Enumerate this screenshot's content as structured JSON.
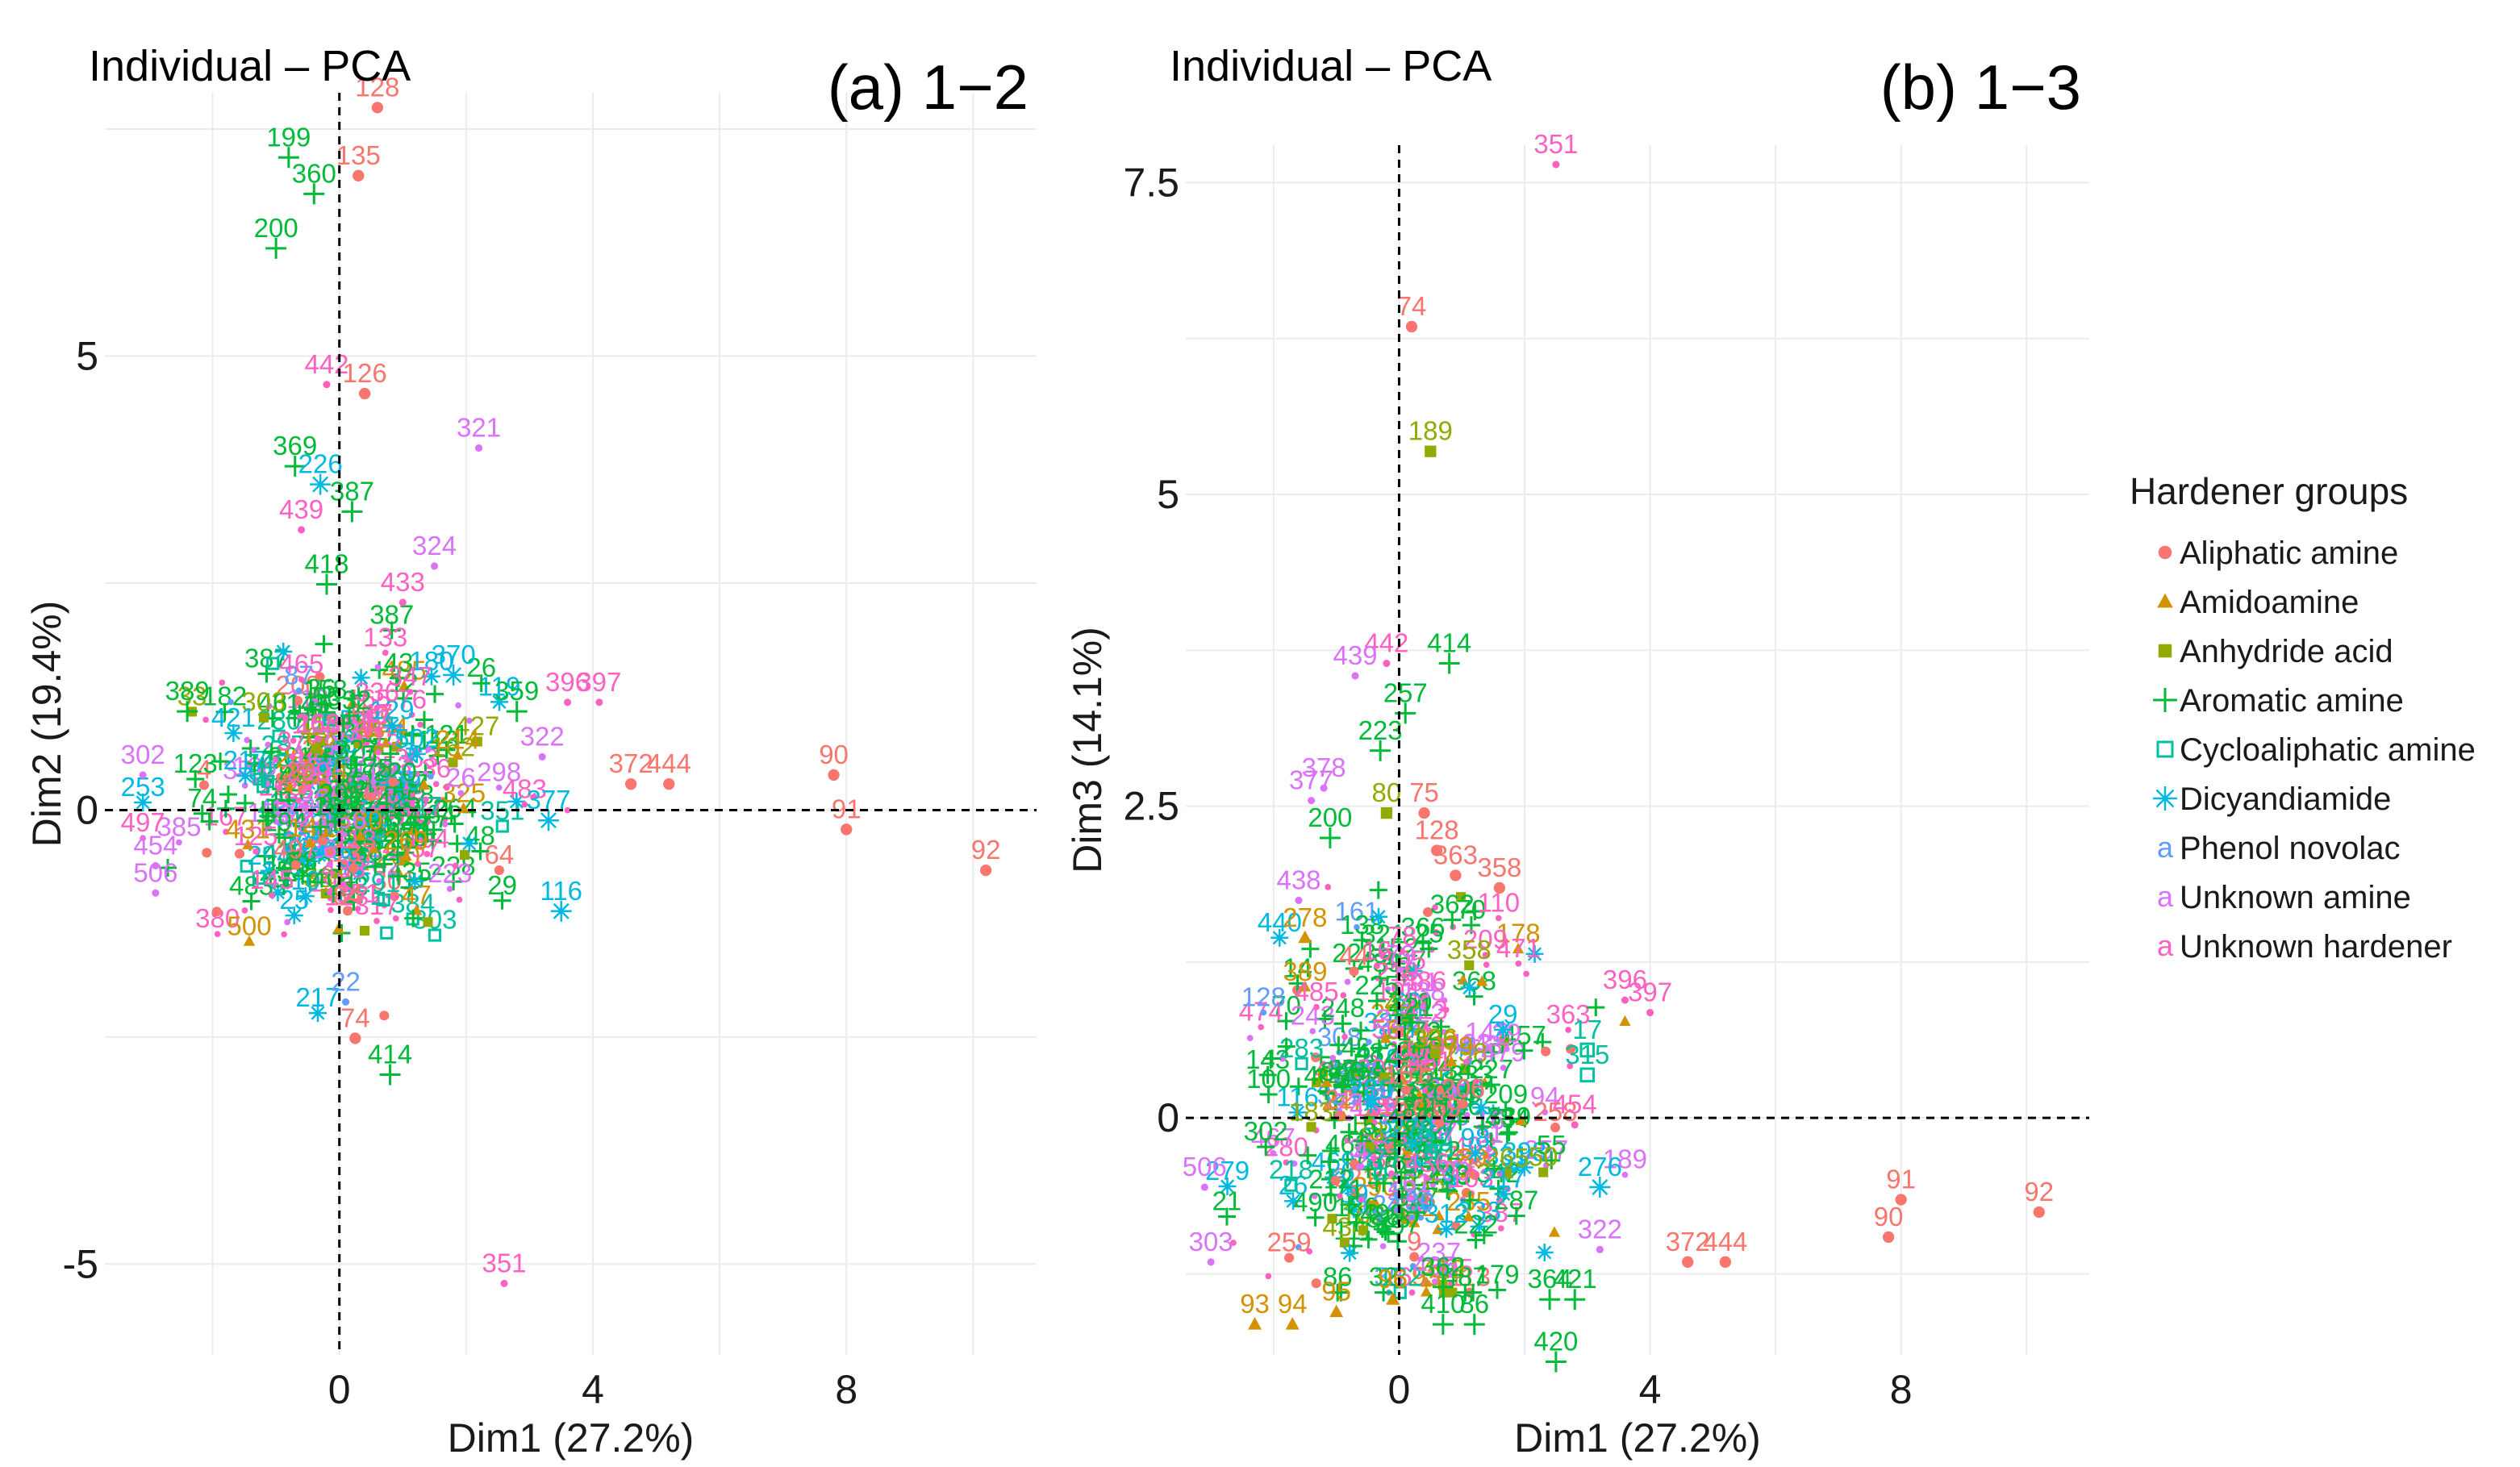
{
  "legend": {
    "title": "Hardener groups",
    "groups": [
      {
        "key": "aliphatic",
        "label": "Aliphatic amine",
        "color": "#F8766D",
        "symbol": "circle"
      },
      {
        "key": "amidoamine",
        "label": "Amidoamine",
        "color": "#D39200",
        "symbol": "triangle"
      },
      {
        "key": "anhydride",
        "label": "Anhydride acid",
        "color": "#93AA00",
        "symbol": "square"
      },
      {
        "key": "aromatic",
        "label": "Aromatic amine",
        "color": "#00BA38",
        "symbol": "plus"
      },
      {
        "key": "cycloaliphatic",
        "label": "Cycloaliphatic amine",
        "color": "#00C19F",
        "symbol": "boxed"
      },
      {
        "key": "dicyandiamide",
        "label": "Dicyandiamide",
        "color": "#00B9E3",
        "symbol": "asterisk"
      },
      {
        "key": "phenol",
        "label": "Phenol novolac",
        "color": "#619CFF",
        "symbol": "letter"
      },
      {
        "key": "unknown_amine",
        "label": "Unknown amine",
        "color": "#DB72FB",
        "symbol": "letter"
      },
      {
        "key": "unknown_hardener",
        "label": "Unknown hardener",
        "color": "#FF61C3",
        "symbol": "letter"
      }
    ]
  },
  "chart_data": [
    {
      "type": "scatter",
      "title": "Individual – PCA",
      "panel_label": "(a) 1−2",
      "xlabel": "Dim1 (27.2%)",
      "ylabel": "Dim2 (19.4%)",
      "xlim": [
        -3.7,
        11
      ],
      "ylim": [
        -6.0,
        7.9
      ],
      "xticks": [
        0,
        4,
        8
      ],
      "yticks": [
        -5,
        0,
        5
      ],
      "grid": true,
      "labeled_points": [
        {
          "id": "128",
          "x": 0.6,
          "y": 7.95,
          "group": "aliphatic"
        },
        {
          "id": "135",
          "x": 0.3,
          "y": 7.2,
          "group": "aliphatic"
        },
        {
          "id": "199",
          "x": -0.8,
          "y": 7.4,
          "group": "aromatic"
        },
        {
          "id": "360",
          "x": -0.4,
          "y": 7.0,
          "group": "aromatic"
        },
        {
          "id": "200",
          "x": -1.0,
          "y": 6.4,
          "group": "aromatic"
        },
        {
          "id": "442",
          "x": -0.2,
          "y": 4.9,
          "group": "unknown_hardener"
        },
        {
          "id": "126",
          "x": 0.4,
          "y": 4.8,
          "group": "aliphatic"
        },
        {
          "id": "369",
          "x": -0.7,
          "y": 4.0,
          "group": "aromatic"
        },
        {
          "id": "321",
          "x": 2.2,
          "y": 4.2,
          "group": "unknown_amine"
        },
        {
          "id": "226",
          "x": -0.3,
          "y": 3.8,
          "group": "dicyandiamide"
        },
        {
          "id": "387",
          "x": 0.2,
          "y": 3.5,
          "group": "aromatic"
        },
        {
          "id": "439",
          "x": -0.6,
          "y": 3.3,
          "group": "unknown_hardener"
        },
        {
          "id": "324",
          "x": 1.5,
          "y": 2.9,
          "group": "unknown_amine"
        },
        {
          "id": "433",
          "x": 1.0,
          "y": 2.5,
          "group": "unknown_hardener"
        },
        {
          "id": "418",
          "x": -0.2,
          "y": 2.7,
          "group": "aromatic"
        },
        {
          "id": "370",
          "x": 1.8,
          "y": 1.7,
          "group": "dicyandiamide"
        },
        {
          "id": "389",
          "x": -2.4,
          "y": 1.3,
          "group": "aromatic"
        },
        {
          "id": "396",
          "x": 3.6,
          "y": 1.4,
          "group": "unknown_hardener"
        },
        {
          "id": "397",
          "x": 4.1,
          "y": 1.4,
          "group": "unknown_hardener"
        },
        {
          "id": "359",
          "x": 2.8,
          "y": 1.3,
          "group": "aromatic"
        },
        {
          "id": "322",
          "x": 3.2,
          "y": 0.8,
          "group": "unknown_amine"
        },
        {
          "id": "372",
          "x": 4.6,
          "y": 0.5,
          "group": "aliphatic"
        },
        {
          "id": "444",
          "x": 5.2,
          "y": 0.5,
          "group": "aliphatic"
        },
        {
          "id": "90",
          "x": 7.8,
          "y": 0.6,
          "group": "aliphatic"
        },
        {
          "id": "91",
          "x": 8.0,
          "y": 0.0,
          "group": "aliphatic"
        },
        {
          "id": "92",
          "x": 10.2,
          "y": -0.45,
          "group": "aliphatic"
        },
        {
          "id": "377",
          "x": 3.3,
          "y": 0.1,
          "group": "dicyandiamide"
        },
        {
          "id": "116",
          "x": 3.5,
          "y": -0.9,
          "group": "dicyandiamide"
        },
        {
          "id": "22",
          "x": 0.1,
          "y": -1.9,
          "group": "phenol"
        },
        {
          "id": "74",
          "x": 0.25,
          "y": -2.3,
          "group": "aliphatic"
        },
        {
          "id": "414",
          "x": 0.8,
          "y": -2.7,
          "group": "aromatic"
        },
        {
          "id": "351",
          "x": 2.6,
          "y": -5.0,
          "group": "unknown_hardener"
        },
        {
          "id": "302",
          "x": -3.1,
          "y": 0.6,
          "group": "unknown_amine"
        },
        {
          "id": "454",
          "x": -2.9,
          "y": -0.4,
          "group": "unknown_amine"
        },
        {
          "id": "506",
          "x": -2.9,
          "y": -0.7,
          "group": "unknown_amine"
        }
      ]
    },
    {
      "type": "scatter",
      "title": "Individual – PCA",
      "panel_label": "(b) 1−3",
      "xlabel": "Dim1 (27.2%)",
      "ylabel": "Dim3 (14.1%)",
      "xlim": [
        -3.4,
        11
      ],
      "ylim": [
        -1.9,
        7.8
      ],
      "xticks": [
        0,
        4,
        8
      ],
      "yticks": [
        0,
        2.5,
        5,
        7.5
      ],
      "grid": true,
      "labeled_points": [
        {
          "id": "351",
          "x": 2.5,
          "y": 7.8,
          "group": "unknown_hardener"
        },
        {
          "id": "74",
          "x": 0.2,
          "y": 6.5,
          "group": "aliphatic"
        },
        {
          "id": "189",
          "x": 0.5,
          "y": 5.5,
          "group": "anhydride"
        },
        {
          "id": "414",
          "x": 0.8,
          "y": 3.8,
          "group": "aromatic"
        },
        {
          "id": "442",
          "x": -0.2,
          "y": 3.8,
          "group": "unknown_hardener"
        },
        {
          "id": "439",
          "x": -0.7,
          "y": 3.7,
          "group": "unknown_amine"
        },
        {
          "id": "257",
          "x": 0.1,
          "y": 3.4,
          "group": "aromatic"
        },
        {
          "id": "223",
          "x": -0.3,
          "y": 3.1,
          "group": "aromatic"
        },
        {
          "id": "378",
          "x": -1.2,
          "y": 2.8,
          "group": "unknown_amine"
        },
        {
          "id": "377",
          "x": -1.4,
          "y": 2.7,
          "group": "unknown_amine"
        },
        {
          "id": "80",
          "x": -0.2,
          "y": 2.6,
          "group": "anhydride"
        },
        {
          "id": "75",
          "x": 0.4,
          "y": 2.6,
          "group": "aliphatic"
        },
        {
          "id": "200",
          "x": -1.1,
          "y": 2.4,
          "group": "aromatic"
        },
        {
          "id": "128",
          "x": 0.6,
          "y": 2.3,
          "group": "aliphatic"
        },
        {
          "id": "363",
          "x": 0.9,
          "y": 2.1,
          "group": "aliphatic"
        },
        {
          "id": "358",
          "x": 1.6,
          "y": 2.0,
          "group": "aliphatic"
        },
        {
          "id": "438",
          "x": -1.6,
          "y": 1.9,
          "group": "unknown_amine"
        },
        {
          "id": "278",
          "x": -1.5,
          "y": 1.6,
          "group": "amidoamine"
        },
        {
          "id": "396",
          "x": 3.6,
          "y": 1.1,
          "group": "unknown_hardener"
        },
        {
          "id": "397",
          "x": 4.0,
          "y": 1.0,
          "group": "unknown_hardener"
        },
        {
          "id": "17",
          "x": 3.0,
          "y": 0.7,
          "group": "cycloaliphatic"
        },
        {
          "id": "315",
          "x": 3.0,
          "y": 0.5,
          "group": "cycloaliphatic"
        },
        {
          "id": "454",
          "x": 2.8,
          "y": 0.1,
          "group": "unknown_hardener"
        },
        {
          "id": "276",
          "x": 3.2,
          "y": -0.4,
          "group": "dicyandiamide"
        },
        {
          "id": "91",
          "x": 8.0,
          "y": -0.5,
          "group": "aliphatic"
        },
        {
          "id": "92",
          "x": 10.2,
          "y": -0.6,
          "group": "aliphatic"
        },
        {
          "id": "90",
          "x": 7.8,
          "y": -0.8,
          "group": "aliphatic"
        },
        {
          "id": "372",
          "x": 4.6,
          "y": -1.0,
          "group": "aliphatic"
        },
        {
          "id": "444",
          "x": 5.2,
          "y": -1.0,
          "group": "aliphatic"
        },
        {
          "id": "322",
          "x": 3.2,
          "y": -0.9,
          "group": "unknown_amine"
        },
        {
          "id": "421",
          "x": 2.8,
          "y": -1.3,
          "group": "aromatic"
        },
        {
          "id": "364",
          "x": 2.4,
          "y": -1.3,
          "group": "aromatic"
        },
        {
          "id": "362",
          "x": 0.7,
          "y": -1.2,
          "group": "aromatic"
        },
        {
          "id": "93",
          "x": -2.3,
          "y": -1.5,
          "group": "amidoamine"
        },
        {
          "id": "94",
          "x": -1.7,
          "y": -1.5,
          "group": "amidoamine"
        },
        {
          "id": "95",
          "x": -1.0,
          "y": -1.4,
          "group": "amidoamine"
        },
        {
          "id": "96",
          "x": -0.1,
          "y": -1.3,
          "group": "amidoamine"
        },
        {
          "id": "410",
          "x": 0.7,
          "y": -1.5,
          "group": "aromatic"
        },
        {
          "id": "86",
          "x": 1.2,
          "y": -1.5,
          "group": "aromatic"
        },
        {
          "id": "420",
          "x": 2.5,
          "y": -1.8,
          "group": "aromatic"
        },
        {
          "id": "506",
          "x": -3.1,
          "y": -0.4,
          "group": "unknown_amine"
        },
        {
          "id": "303",
          "x": -3.0,
          "y": -1.0,
          "group": "unknown_amine"
        }
      ]
    }
  ]
}
